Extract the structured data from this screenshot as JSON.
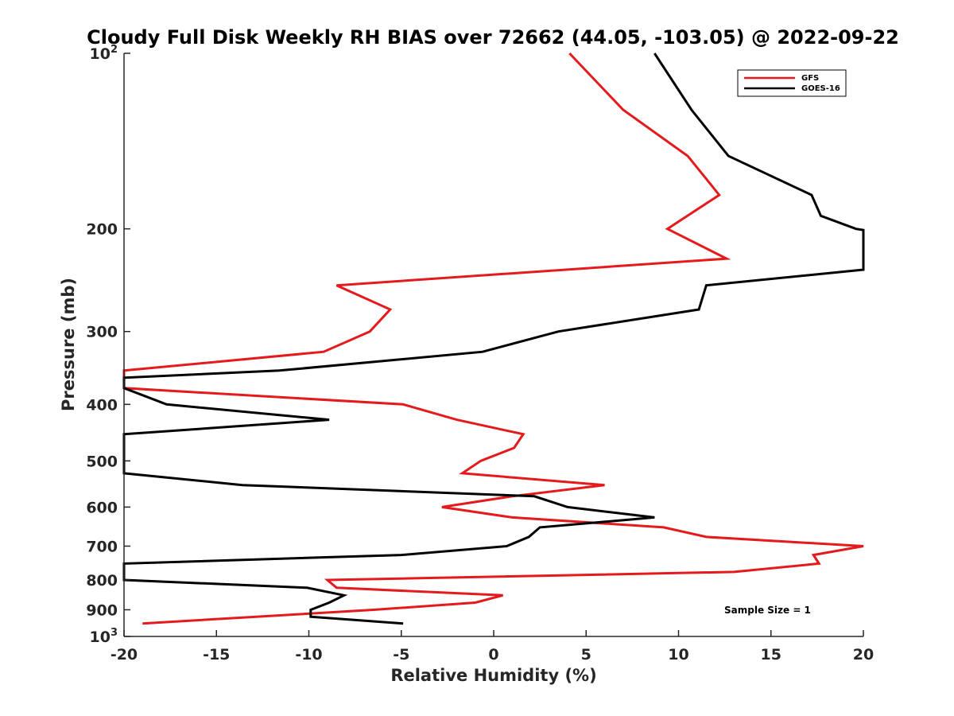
{
  "chart_data": {
    "type": "line",
    "title": "Cloudy Full Disk Weekly RH BIAS over 72662 (44.05, -103.05) @ 2022-09-22",
    "xlabel": "Relative Humidity (%)",
    "ylabel": "Pressure (mb)",
    "xlim": [
      -20,
      20
    ],
    "ylim": [
      100,
      1000
    ],
    "y_scale": "log",
    "y_reversed": true,
    "x_ticks": [
      "-20",
      "-15",
      "-10",
      "-5",
      "0",
      "5",
      "10",
      "15",
      "20"
    ],
    "y_ticks": [
      {
        "value": 100,
        "base": "10",
        "exp": "2"
      },
      {
        "value": 200,
        "label": "200"
      },
      {
        "value": 300,
        "label": "300"
      },
      {
        "value": 400,
        "label": "400"
      },
      {
        "value": 500,
        "label": "500"
      },
      {
        "value": 600,
        "label": "600"
      },
      {
        "value": 700,
        "label": "700"
      },
      {
        "value": 800,
        "label": "800"
      },
      {
        "value": 900,
        "label": "900"
      },
      {
        "value": 1000,
        "base": "10",
        "exp": "3"
      }
    ],
    "grid": false,
    "legend_position": "top-right",
    "annotation": "Sample Size = 1",
    "series": [
      {
        "name": "GFS",
        "color": "#e41a1c",
        "points": [
          [
            4.1,
            100
          ],
          [
            7.0,
            125
          ],
          [
            10.5,
            150
          ],
          [
            12.2,
            175
          ],
          [
            9.4,
            200
          ],
          [
            12.6,
            225
          ],
          [
            -8.5,
            250
          ],
          [
            -5.6,
            275
          ],
          [
            -6.7,
            300
          ],
          [
            -9.2,
            325
          ],
          [
            -20.0,
            350
          ],
          [
            -20.0,
            375
          ],
          [
            -4.9,
            400
          ],
          [
            -2.0,
            425
          ],
          [
            1.6,
            450
          ],
          [
            1.1,
            475
          ],
          [
            -0.7,
            500
          ],
          [
            -1.7,
            525
          ],
          [
            6.0,
            550
          ],
          [
            1.0,
            575
          ],
          [
            -2.8,
            600
          ],
          [
            1.0,
            625
          ],
          [
            9.2,
            650
          ],
          [
            11.5,
            675
          ],
          [
            20.0,
            700
          ],
          [
            17.3,
            725
          ],
          [
            17.6,
            750
          ],
          [
            13.0,
            775
          ],
          [
            -9.0,
            800
          ],
          [
            -8.5,
            825
          ],
          [
            0.5,
            850
          ],
          [
            -1.0,
            875
          ],
          [
            -6.5,
            900
          ],
          [
            -19.0,
            950
          ]
        ]
      },
      {
        "name": "GOES-16",
        "color": "#000000",
        "points": [
          [
            8.7,
            100
          ],
          [
            10.7,
            125
          ],
          [
            12.7,
            150
          ],
          [
            17.2,
            175
          ],
          [
            17.7,
            190
          ],
          [
            19.6,
            200
          ],
          [
            20.0,
            201
          ],
          [
            20.0,
            235
          ],
          [
            11.5,
            250
          ],
          [
            11.1,
            275
          ],
          [
            3.5,
            300
          ],
          [
            -0.6,
            325
          ],
          [
            -11.6,
            350
          ],
          [
            -20.0,
            360
          ],
          [
            -20.0,
            375
          ],
          [
            -17.7,
            400
          ],
          [
            -8.9,
            425
          ],
          [
            -20.0,
            450
          ],
          [
            -20.0,
            525
          ],
          [
            -13.6,
            550
          ],
          [
            2.2,
            575
          ],
          [
            4.0,
            600
          ],
          [
            8.7,
            625
          ],
          [
            2.5,
            650
          ],
          [
            1.9,
            675
          ],
          [
            0.7,
            700
          ],
          [
            -5.0,
            725
          ],
          [
            -20.0,
            750
          ],
          [
            -20.0,
            800
          ],
          [
            -10.1,
            825
          ],
          [
            -8.1,
            850
          ],
          [
            -8.9,
            875
          ],
          [
            -9.9,
            900
          ],
          [
            -9.9,
            925
          ],
          [
            -4.9,
            950
          ]
        ]
      }
    ]
  }
}
